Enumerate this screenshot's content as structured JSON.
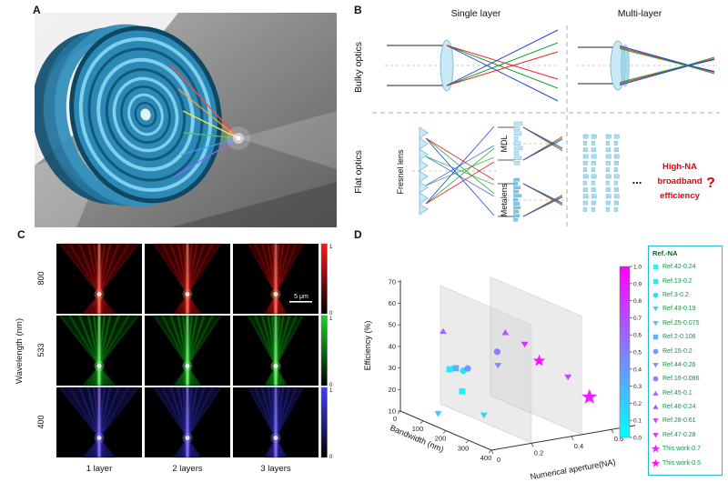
{
  "figure": {
    "labels": {
      "a": "A",
      "b": "B",
      "c": "C",
      "d": "D"
    }
  },
  "panel_b": {
    "headers": {
      "single": "Single layer",
      "multi": "Multi-layer"
    },
    "row_labels": {
      "bulky": "Bulky optics",
      "flat": "Flat optics"
    },
    "element_labels": {
      "fresnel": "Fresnel lens",
      "mdl": "MDL",
      "metalens": "Metalens"
    },
    "dots": "...",
    "challenge": {
      "line1": "High-NA",
      "line2": "broadband",
      "line3": "efficiency",
      "mark": "?",
      "color": "#e8000b"
    }
  },
  "panel_c": {
    "ylabel": "Wavelength (nm)",
    "rows": [
      {
        "wavelength": "800",
        "colormap": "red"
      },
      {
        "wavelength": "533",
        "colormap": "green"
      },
      {
        "wavelength": "400",
        "colormap": "blue"
      }
    ],
    "cols": [
      "1 layer",
      "2 layers",
      "3 layers"
    ],
    "scalebar": "5 μm",
    "colorbar": {
      "max": "1",
      "min": "0"
    }
  },
  "panel_d": {
    "axes": {
      "efficiency": {
        "label": "Efficiency (%)",
        "ticks": [
          10,
          20,
          30,
          40,
          50,
          60,
          70
        ]
      },
      "bandwidth": {
        "label": "Bandwidth (nm)",
        "ticks": [
          0,
          100,
          200,
          300,
          400
        ]
      },
      "na": {
        "label": "Numerical aperture(NA)",
        "ticks": [
          "0",
          "0.2",
          "0.4",
          "0.6"
        ]
      }
    },
    "colorbar": {
      "ticks": [
        "1.0",
        "0.9",
        "0.8",
        "0.7",
        "0.6",
        "0.5",
        "0.4",
        "0.3",
        "0.2",
        "0.1",
        "0.0"
      ]
    },
    "legend": {
      "title": "Ref.-NA",
      "text_color": "#00a03c"
    }
  },
  "chart_data": {
    "type": "scatter",
    "projection": "3d",
    "title": "",
    "axis_labels": {
      "x": "Numerical aperture(NA)",
      "y": "Bandwidth (nm)",
      "z": "Efficiency (%)"
    },
    "axis_ranges": {
      "na": [
        0,
        0.7
      ],
      "bandwidth_nm": [
        0,
        400
      ],
      "efficiency_pct": [
        10,
        70
      ]
    },
    "colormap": "cool (cyan=0 to magenta=1)",
    "legend_position": "right",
    "points": [
      {
        "label": "Ref.42-0.24",
        "marker": "square",
        "color": "#05faff",
        "na": 0.24,
        "bandwidth_nm": 60,
        "efficiency_pct": 18
      },
      {
        "label": "Ref.13-0.2",
        "marker": "square",
        "color": "#14ebff",
        "na": 0.2,
        "bandwidth_nm": 40,
        "efficiency_pct": 28
      },
      {
        "label": "Ref.3-0.2",
        "marker": "circle",
        "color": "#24dbff",
        "na": 0.2,
        "bandwidth_nm": 100,
        "efficiency_pct": 30
      },
      {
        "label": "Ref.43-0.19",
        "marker": "triangle-down",
        "color": "#33ccff",
        "na": 0.19,
        "bandwidth_nm": 200,
        "efficiency_pct": 14
      },
      {
        "label": "Ref.25-0.075",
        "marker": "triangle-down",
        "color": "#42bdff",
        "na": 0.075,
        "bandwidth_nm": 100,
        "efficiency_pct": 12
      },
      {
        "label": "Ref.2-0.106",
        "marker": "square",
        "color": "#54abff",
        "na": 0.106,
        "bandwidth_nm": 150,
        "efficiency_pct": 35
      },
      {
        "label": "Ref.15-0.2",
        "marker": "circle",
        "color": "#6699ff",
        "na": 0.2,
        "bandwidth_nm": 120,
        "efficiency_pct": 32
      },
      {
        "label": "Ref.44-0.26",
        "marker": "triangle-down",
        "color": "#7887ff",
        "na": 0.26,
        "bandwidth_nm": 200,
        "efficiency_pct": 36
      },
      {
        "label": "Ref.16-0.086",
        "marker": "circle",
        "color": "#8a75ff",
        "na": 0.086,
        "bandwidth_nm": 350,
        "efficiency_pct": 52
      },
      {
        "label": "Ref.45-0.1",
        "marker": "triangle-up",
        "color": "#9c63ff",
        "na": 0.1,
        "bandwidth_nm": 100,
        "efficiency_pct": 50
      },
      {
        "label": "Ref.46-0.24",
        "marker": "triangle-up",
        "color": "#ad52ff",
        "na": 0.24,
        "bandwidth_nm": 250,
        "efficiency_pct": 54
      },
      {
        "label": "Ref.28-0.61",
        "marker": "triangle-down",
        "color": "#c23dff",
        "na": 0.61,
        "bandwidth_nm": 200,
        "efficiency_pct": 25
      },
      {
        "label": "Ref.47-0.28",
        "marker": "triangle-down",
        "color": "#d629ff",
        "na": 0.28,
        "bandwidth_nm": 300,
        "efficiency_pct": 50
      },
      {
        "label": "This work-0.7",
        "marker": "star",
        "color": "#eb14ff",
        "na": 0.7,
        "bandwidth_nm": 215,
        "efficiency_pct": 15,
        "size": 9
      },
      {
        "label": "This work-0.5",
        "marker": "star",
        "color": "#ff00ff",
        "na": 0.5,
        "bandwidth_nm": 170,
        "efficiency_pct": 33,
        "size": 7
      }
    ]
  }
}
